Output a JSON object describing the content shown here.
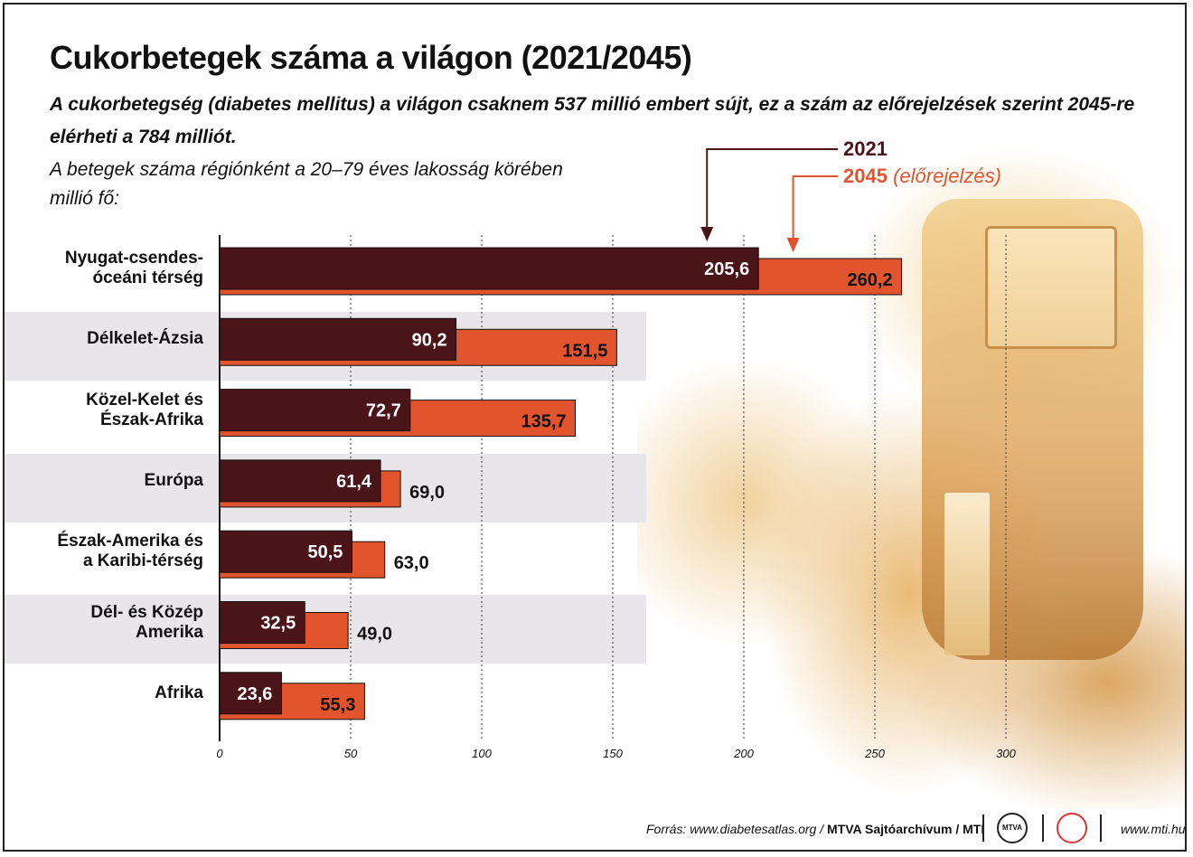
{
  "title": "Cukorbetegek száma a világon (2021/2045)",
  "subtitle": "A cukorbetegség (diabetes mellitus) a világon csaknem 537 millió embert sújt, ez a szám az előrejelzések szerint 2045-re elérheti a 784 milliót.",
  "description_line1": "A betegek száma régiónként a 20–79 éves lakosság körében",
  "description_line2": "millió fő:",
  "legend": {
    "year_2021": "2021",
    "year_2045": "2045",
    "year_2045_note": "(előrejelzés)"
  },
  "colors": {
    "series_2021": "#4a1418",
    "series_2045": "#e2542e",
    "band": "#e8e6ea"
  },
  "chart_data": {
    "type": "bar",
    "orientation": "horizontal",
    "categories": [
      [
        "Nyugat-csendes-",
        "óceáni térség"
      ],
      [
        "Délkelet-Ázsia"
      ],
      [
        "Közel-Kelet és",
        "Észak-Afrika"
      ],
      [
        "Európa"
      ],
      [
        "Észak-Amerika és",
        "a Karibi-térség"
      ],
      [
        "Dél- és Közép",
        "Amerika"
      ],
      [
        "Afrika"
      ]
    ],
    "series": [
      {
        "name": "2021",
        "values": [
          205.6,
          90.2,
          72.7,
          61.4,
          50.5,
          32.5,
          23.6
        ],
        "labels": [
          "205,6",
          "90,2",
          "72,7",
          "61,4",
          "50,5",
          "32,5",
          "23,6"
        ]
      },
      {
        "name": "2045",
        "values": [
          260.2,
          151.5,
          135.7,
          69.0,
          63.0,
          49.0,
          55.3
        ],
        "labels": [
          "260,2",
          "151,5",
          "135,7",
          "69,0",
          "63,0",
          "49,0",
          "55,3"
        ]
      }
    ],
    "xlim": [
      0,
      300
    ],
    "xticks": [
      0,
      50,
      100,
      150,
      200,
      250,
      300
    ],
    "xtick_labels": [
      "0",
      "50",
      "100",
      "150",
      "200",
      "250",
      "300"
    ],
    "grid": true
  },
  "footer": {
    "source_prefix": "Forrás: www.diabetesatlas.org / ",
    "source_bold": "MTVA Sajtóarchívum / MTI",
    "logo1": "MTVA",
    "website": "www.mti.hu"
  }
}
